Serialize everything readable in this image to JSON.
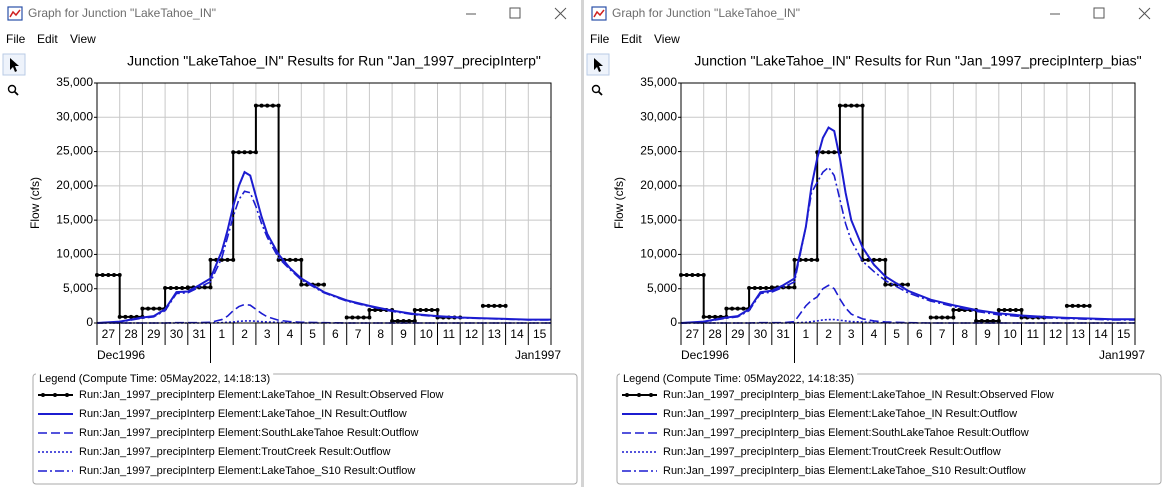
{
  "windows": [
    {
      "title": "Graph for Junction \"LakeTahoe_IN\"",
      "menu": [
        "File",
        "Edit",
        "View"
      ]
    },
    {
      "title": "Graph for Junction \"LakeTahoe_IN\"",
      "menu": [
        "File",
        "Edit",
        "View"
      ]
    }
  ],
  "chart_data": [
    {
      "type": "line",
      "title": "Junction \"LakeTahoe_IN\" Results for Run \"Jan_1997_precipInterp\"",
      "ylabel": "Flow (cfs)",
      "grid": true,
      "xlim": [
        0,
        20
      ],
      "ylim": [
        0,
        35000
      ],
      "yticks": [
        0,
        {
          "value": 5000,
          "label": "5,000"
        },
        {
          "value": 10000,
          "label": "10,000"
        },
        {
          "value": 15000,
          "label": "15,000"
        },
        {
          "value": 20000,
          "label": "20,000"
        },
        {
          "value": 25000,
          "label": "25,000"
        },
        {
          "value": 30000,
          "label": "30,000"
        },
        {
          "value": 35000,
          "label": "35,000"
        }
      ],
      "xticks": [
        {
          "value": 0,
          "label": "27"
        },
        {
          "value": 1,
          "label": "28"
        },
        {
          "value": 2,
          "label": "29"
        },
        {
          "value": 3,
          "label": "30"
        },
        {
          "value": 4,
          "label": "31"
        },
        {
          "value": 5,
          "label": "1"
        },
        {
          "value": 6,
          "label": "2"
        },
        {
          "value": 7,
          "label": "3"
        },
        {
          "value": 8,
          "label": "4"
        },
        {
          "value": 9,
          "label": "5"
        },
        {
          "value": 10,
          "label": "6"
        },
        {
          "value": 11,
          "label": "7"
        },
        {
          "value": 12,
          "label": "8"
        },
        {
          "value": 13,
          "label": "9"
        },
        {
          "value": 14,
          "label": "10"
        },
        {
          "value": 15,
          "label": "11"
        },
        {
          "value": 16,
          "label": "12"
        },
        {
          "value": 17,
          "label": "13"
        },
        {
          "value": 18,
          "label": "14"
        },
        {
          "value": 19,
          "label": "15"
        }
      ],
      "period_labels": [
        "Dec1996",
        "Jan1997"
      ],
      "legend_title": "Legend (Compute Time: 05May2022, 14:18:13)",
      "x": [
        0,
        1,
        2,
        2.5,
        3,
        3.5,
        4,
        4.5,
        5,
        5.5,
        5.75,
        6,
        6.25,
        6.5,
        6.75,
        7,
        7.25,
        7.5,
        8,
        8.5,
        9,
        10,
        11,
        12,
        13,
        14,
        15,
        16,
        17,
        18,
        19,
        20
      ],
      "series": [
        {
          "name": "Run:Jan_1997_precipInterp Element:LakeTahoe_IN Result:Observed Flow",
          "color": "#000000",
          "line_style": "solid",
          "drawstyle": "steps",
          "markers": true,
          "x": [
            0,
            1,
            2,
            3,
            4,
            5,
            6,
            7,
            8,
            9,
            10,
            11,
            12,
            13,
            14,
            15,
            16,
            17,
            18,
            19
          ],
          "values": [
            7000,
            900,
            2100,
            5100,
            5200,
            9200,
            24900,
            31700,
            9200,
            5600,
            null,
            800,
            1900,
            300,
            1900,
            800,
            null,
            2500,
            null,
            null
          ]
        },
        {
          "name": "Run:Jan_1997_precipInterp Element:LakeTahoe_IN Result:Outflow",
          "color": "#1c1cd0",
          "line_style": "solid",
          "values": [
            0,
            200,
            800,
            1000,
            2000,
            4500,
            4600,
            5500,
            6500,
            10500,
            13500,
            17000,
            20000,
            22000,
            21500,
            18500,
            15500,
            13000,
            10000,
            8000,
            6500,
            4500,
            3300,
            2500,
            1800,
            1300,
            1000,
            800,
            700,
            600,
            500,
            500
          ]
        },
        {
          "name": "Run:Jan_1997_precipInterp Element:SouthLakeTahoe Result:Outflow",
          "color": "#1c1cd0",
          "line_style": "dashed",
          "values": [
            0,
            0,
            0,
            0,
            0,
            50,
            50,
            50,
            100,
            500,
            1000,
            1800,
            2400,
            2700,
            2600,
            2000,
            1400,
            900,
            400,
            200,
            100,
            50,
            0,
            0,
            0,
            0,
            0,
            0,
            0,
            0,
            0,
            0
          ]
        },
        {
          "name": "Run:Jan_1997_precipInterp Element:TroutCreek Result:Outflow",
          "color": "#1c1cd0",
          "line_style": "dotted",
          "values": [
            0,
            0,
            0,
            0,
            0,
            0,
            0,
            0,
            0,
            50,
            100,
            150,
            250,
            300,
            300,
            250,
            200,
            150,
            100,
            50,
            0,
            0,
            0,
            0,
            0,
            0,
            0,
            0,
            0,
            0,
            0,
            0
          ]
        },
        {
          "name": "Run:Jan_1997_precipInterp Element:LakeTahoe_S10 Result:Outflow",
          "color": "#1c1cd0",
          "line_style": "dash-dot",
          "values": [
            0,
            150,
            700,
            900,
            1800,
            4300,
            4400,
            5200,
            6000,
            9500,
            12500,
            15500,
            18000,
            19200,
            19000,
            17000,
            14500,
            12500,
            9500,
            7800,
            6300,
            4400,
            3200,
            2400,
            1700,
            1200,
            950,
            750,
            650,
            550,
            450,
            450
          ]
        }
      ]
    },
    {
      "type": "line",
      "title": "Junction \"LakeTahoe_IN\" Results for Run \"Jan_1997_precipInterp_bias\"",
      "ylabel": "Flow (cfs)",
      "grid": true,
      "xlim": [
        0,
        20
      ],
      "ylim": [
        0,
        35000
      ],
      "yticks": [
        0,
        {
          "value": 5000,
          "label": "5,000"
        },
        {
          "value": 10000,
          "label": "10,000"
        },
        {
          "value": 15000,
          "label": "15,000"
        },
        {
          "value": 20000,
          "label": "20,000"
        },
        {
          "value": 25000,
          "label": "25,000"
        },
        {
          "value": 30000,
          "label": "30,000"
        },
        {
          "value": 35000,
          "label": "35,000"
        }
      ],
      "xticks": [
        {
          "value": 0,
          "label": "27"
        },
        {
          "value": 1,
          "label": "28"
        },
        {
          "value": 2,
          "label": "29"
        },
        {
          "value": 3,
          "label": "30"
        },
        {
          "value": 4,
          "label": "31"
        },
        {
          "value": 5,
          "label": "1"
        },
        {
          "value": 6,
          "label": "2"
        },
        {
          "value": 7,
          "label": "3"
        },
        {
          "value": 8,
          "label": "4"
        },
        {
          "value": 9,
          "label": "5"
        },
        {
          "value": 10,
          "label": "6"
        },
        {
          "value": 11,
          "label": "7"
        },
        {
          "value": 12,
          "label": "8"
        },
        {
          "value": 13,
          "label": "9"
        },
        {
          "value": 14,
          "label": "10"
        },
        {
          "value": 15,
          "label": "11"
        },
        {
          "value": 16,
          "label": "12"
        },
        {
          "value": 17,
          "label": "13"
        },
        {
          "value": 18,
          "label": "14"
        },
        {
          "value": 19,
          "label": "15"
        }
      ],
      "period_labels": [
        "Dec1996",
        "Jan1997"
      ],
      "legend_title": "Legend (Compute Time: 05May2022, 14:18:35)",
      "x": [
        0,
        1,
        2,
        2.5,
        3,
        3.5,
        4,
        4.5,
        5,
        5.5,
        5.75,
        6,
        6.25,
        6.5,
        6.75,
        7,
        7.25,
        7.5,
        8,
        8.5,
        9,
        10,
        11,
        12,
        13,
        14,
        15,
        16,
        17,
        18,
        19,
        20
      ],
      "series": [
        {
          "name": "Run:Jan_1997_precipInterp_bias Element:LakeTahoe_IN Result:Observed Flow",
          "color": "#000000",
          "line_style": "solid",
          "drawstyle": "steps",
          "markers": true,
          "x": [
            0,
            1,
            2,
            3,
            4,
            5,
            6,
            7,
            8,
            9,
            10,
            11,
            12,
            13,
            14,
            15,
            16,
            17,
            18,
            19
          ],
          "values": [
            7000,
            900,
            2100,
            5100,
            5200,
            9200,
            24900,
            31700,
            9200,
            5600,
            null,
            800,
            1900,
            300,
            1900,
            800,
            null,
            2500,
            null,
            null
          ]
        },
        {
          "name": "Run:Jan_1997_precipInterp_bias Element:LakeTahoe_IN Result:Outflow",
          "color": "#1c1cd0",
          "line_style": "solid",
          "values": [
            0,
            200,
            800,
            1000,
            2000,
            4500,
            4700,
            5500,
            6500,
            14000,
            20000,
            24000,
            27000,
            28500,
            28000,
            24000,
            19000,
            15000,
            11000,
            8500,
            6800,
            4700,
            3400,
            2600,
            1900,
            1400,
            1100,
            900,
            750,
            650,
            550,
            550
          ]
        },
        {
          "name": "Run:Jan_1997_precipInterp_bias Element:SouthLakeTahoe Result:Outflow",
          "color": "#1c1cd0",
          "line_style": "dashed",
          "values": [
            0,
            0,
            0,
            0,
            0,
            50,
            50,
            50,
            200,
            2500,
            3300,
            3800,
            5000,
            5500,
            5000,
            3500,
            2200,
            1300,
            600,
            300,
            150,
            50,
            0,
            0,
            0,
            0,
            0,
            0,
            0,
            0,
            0,
            0
          ]
        },
        {
          "name": "Run:Jan_1997_precipInterp_bias Element:TroutCreek Result:Outflow",
          "color": "#1c1cd0",
          "line_style": "dotted",
          "values": [
            0,
            0,
            0,
            0,
            0,
            0,
            0,
            0,
            0,
            100,
            200,
            300,
            450,
            500,
            500,
            400,
            300,
            200,
            150,
            80,
            0,
            0,
            0,
            0,
            0,
            0,
            0,
            0,
            0,
            0,
            0,
            0
          ]
        },
        {
          "name": "Run:Jan_1997_precipInterp_bias Element:LakeTahoe_S10 Result:Outflow",
          "color": "#1c1cd0",
          "line_style": "dash-dot",
          "values": [
            0,
            150,
            700,
            900,
            1800,
            4300,
            4500,
            5200,
            6000,
            14000,
            19000,
            20500,
            22000,
            22700,
            21500,
            18000,
            14500,
            12000,
            9000,
            7500,
            6200,
            4400,
            3200,
            2400,
            1700,
            1200,
            950,
            750,
            650,
            550,
            450,
            450
          ]
        }
      ]
    }
  ]
}
